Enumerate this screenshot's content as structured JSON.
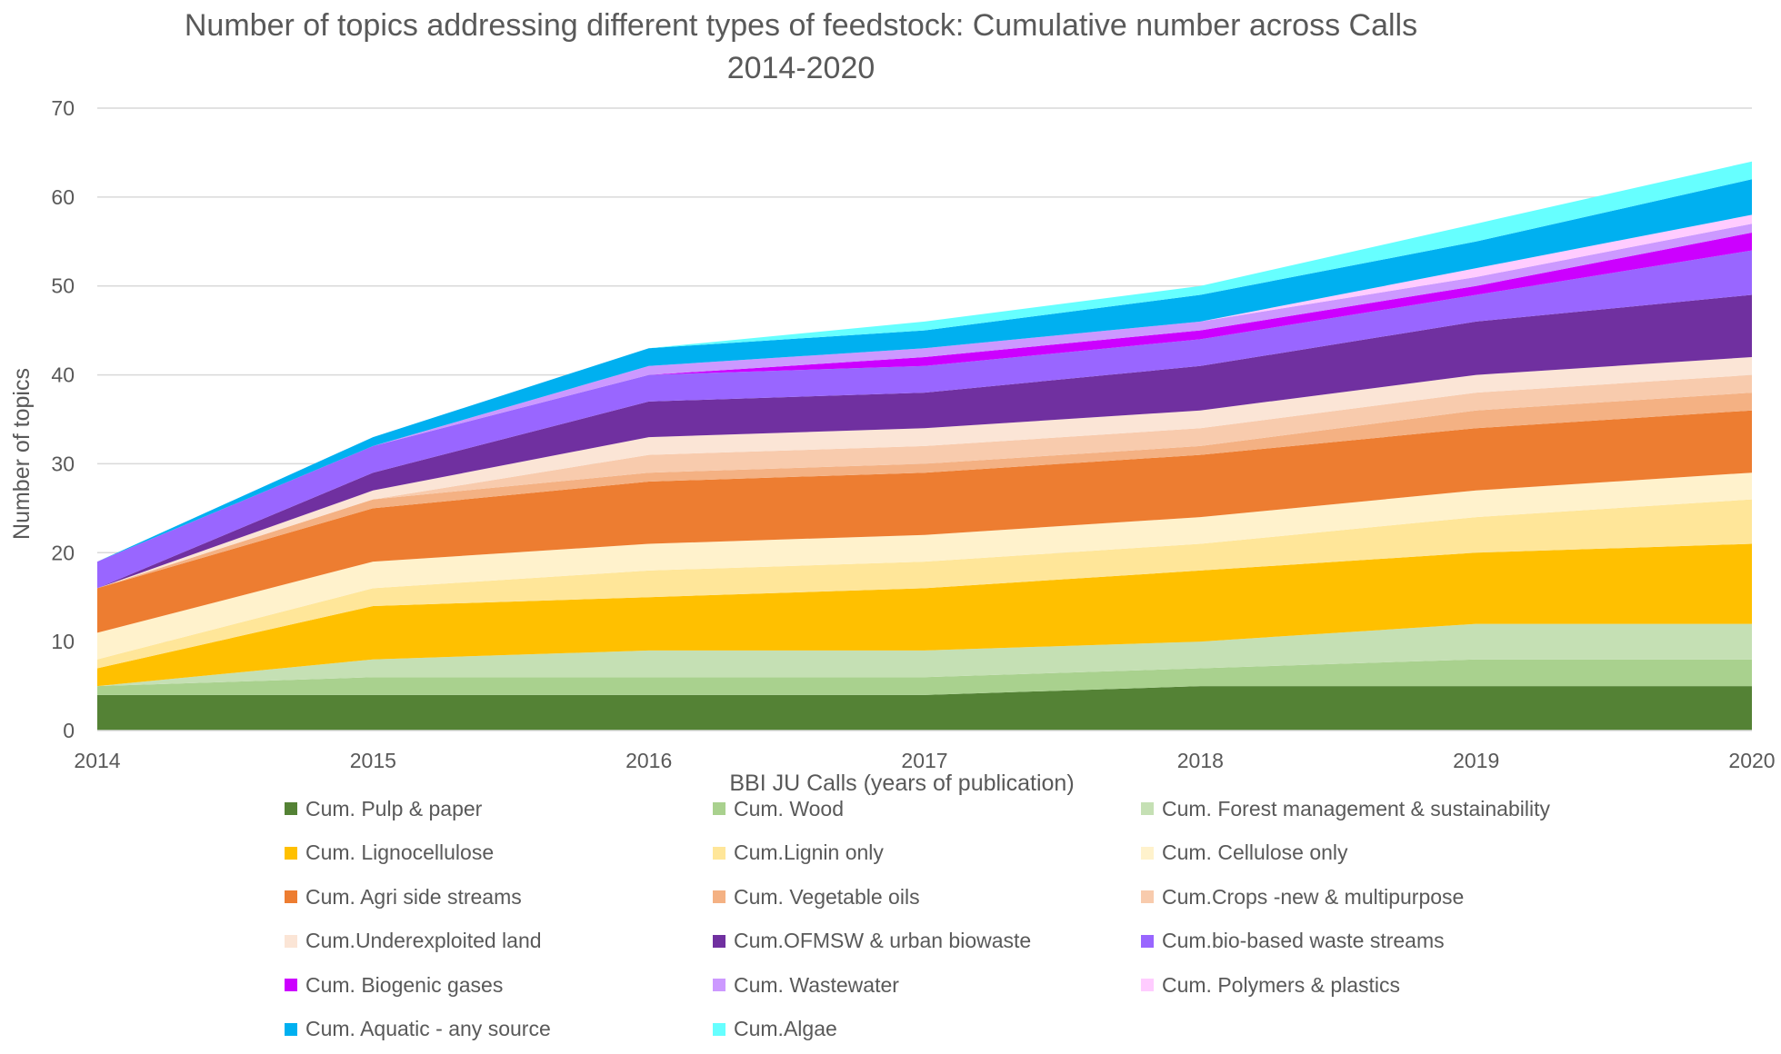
{
  "chart_data": {
    "type": "area",
    "stacked": true,
    "title_line1": "Number of topics addressing different types of feedstock: Cumulative number across Calls",
    "title_line2": "2014-2020",
    "xlabel": "BBI JU Calls (years of publication)",
    "ylabel": "Number of topics",
    "categories": [
      "2014",
      "2015",
      "2016",
      "2017",
      "2018",
      "2019",
      "2020"
    ],
    "yticks": [
      "0",
      "10",
      "20",
      "30",
      "40",
      "50",
      "60",
      "70"
    ],
    "ylim": [
      0,
      70
    ],
    "grid": true,
    "legend_position": "bottom",
    "series": [
      {
        "name": "Cum. Pulp & paper",
        "color": "#548235",
        "values": [
          4,
          4,
          4,
          4,
          5,
          5,
          5
        ]
      },
      {
        "name": "Cum. Wood",
        "color": "#A9D18E",
        "values": [
          1,
          2,
          2,
          2,
          2,
          3,
          3
        ]
      },
      {
        "name": "Cum. Forest management & sustainability",
        "color": "#C5E0B4",
        "values": [
          0,
          2,
          3,
          3,
          3,
          4,
          4
        ]
      },
      {
        "name": "Cum. Lignocellulose",
        "color": "#FFC000",
        "values": [
          2,
          6,
          6,
          7,
          8,
          8,
          9
        ]
      },
      {
        "name": "Cum.Lignin only",
        "color": "#FFE699",
        "values": [
          1,
          2,
          3,
          3,
          3,
          4,
          5
        ]
      },
      {
        "name": "Cum. Cellulose only",
        "color": "#FFF2CC",
        "values": [
          3,
          3,
          3,
          3,
          3,
          3,
          3
        ]
      },
      {
        "name": "Cum. Agri side streams",
        "color": "#ED7D31",
        "values": [
          5,
          6,
          7,
          7,
          7,
          7,
          7
        ]
      },
      {
        "name": "Cum. Vegetable oils",
        "color": "#F4B183",
        "values": [
          0,
          1,
          1,
          1,
          1,
          2,
          2
        ]
      },
      {
        "name": "Cum.Crops -new & multipurpose",
        "color": "#F8CBAD",
        "values": [
          0,
          0,
          2,
          2,
          2,
          2,
          2
        ]
      },
      {
        "name": "Cum.Underexploited land",
        "color": "#FBE5D6",
        "values": [
          0,
          1,
          2,
          2,
          2,
          2,
          2
        ]
      },
      {
        "name": "Cum.OFMSW & urban biowaste",
        "color": "#7030A0",
        "values": [
          0,
          2,
          4,
          4,
          5,
          6,
          7
        ]
      },
      {
        "name": "Cum.bio-based waste streams",
        "color": "#9966FF",
        "values": [
          3,
          3,
          3,
          3,
          3,
          3,
          5
        ]
      },
      {
        "name": "Cum. Biogenic gases",
        "color": "#CC00FF",
        "values": [
          0,
          0,
          0,
          1,
          1,
          1,
          2
        ]
      },
      {
        "name": "Cum. Wastewater",
        "color": "#CC99FF",
        "values": [
          0,
          0,
          1,
          1,
          1,
          1,
          1
        ]
      },
      {
        "name": "Cum. Polymers & plastics",
        "color": "#FFCCFF",
        "values": [
          0,
          0,
          0,
          0,
          0,
          1,
          1
        ]
      },
      {
        "name": "Cum. Aquatic - any source",
        "color": "#00B0F0",
        "values": [
          0,
          1,
          2,
          2,
          3,
          3,
          4
        ]
      },
      {
        "name": "Cum.Algae",
        "color": "#66FFFF",
        "values": [
          0,
          0,
          0,
          1,
          1,
          2,
          2
        ]
      }
    ]
  }
}
